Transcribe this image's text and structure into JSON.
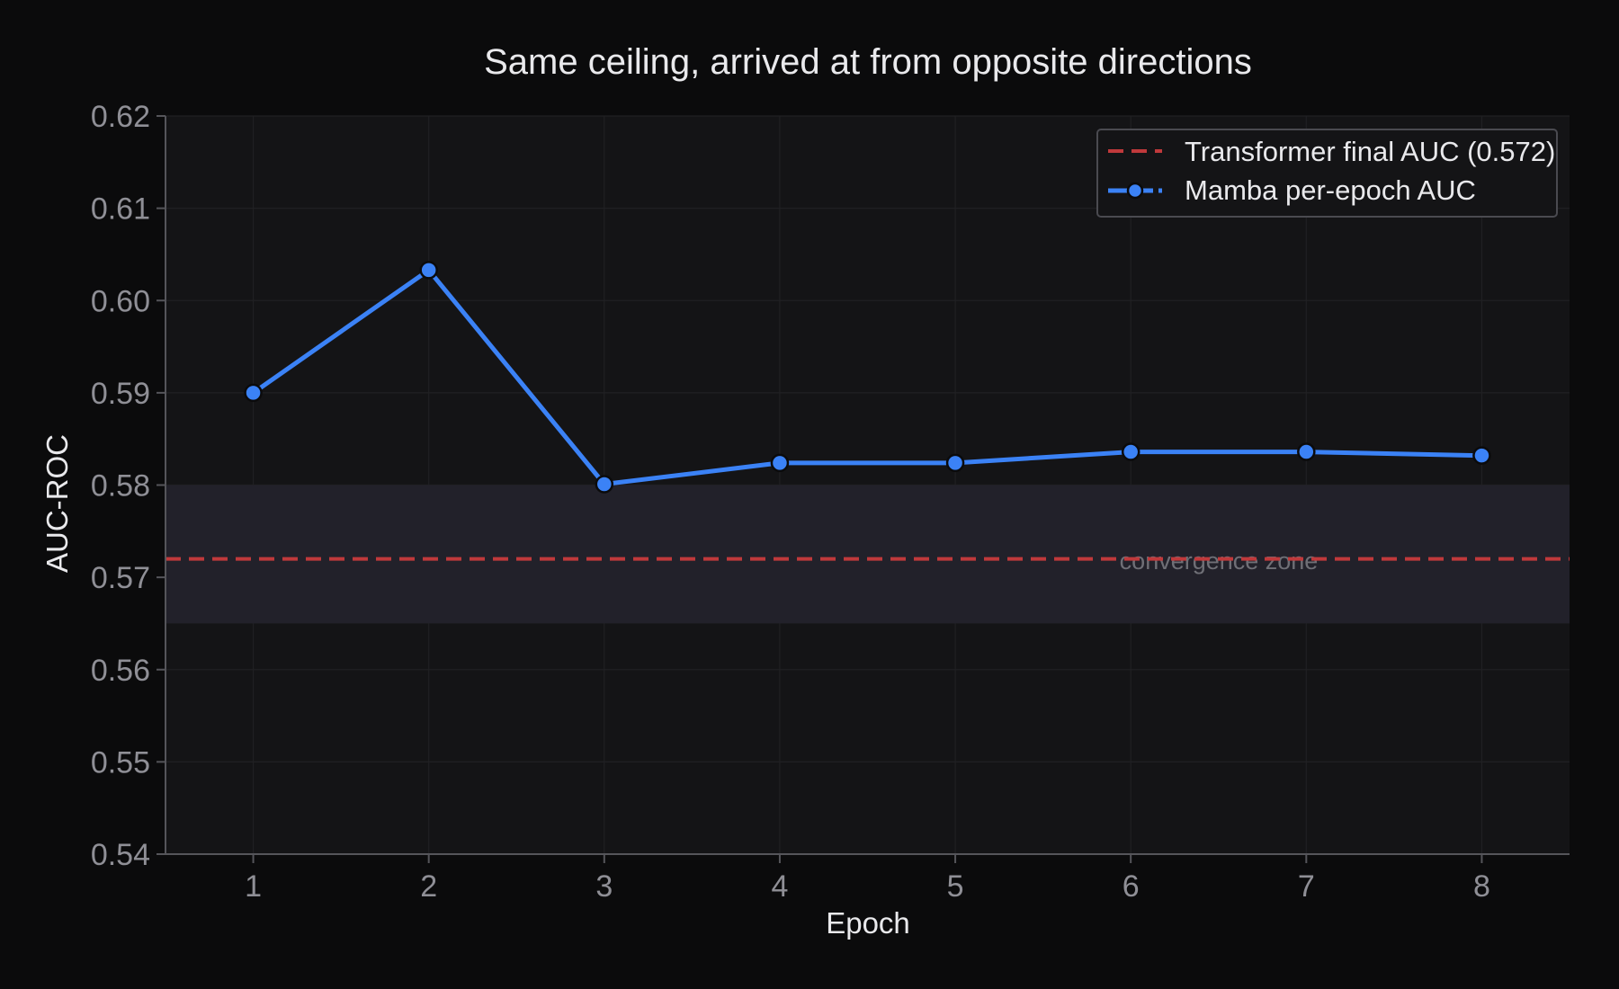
{
  "chart_data": {
    "type": "line",
    "title": "Same ceiling, arrived at from opposite directions",
    "xlabel": "Epoch",
    "ylabel": "AUC-ROC",
    "xlim": [
      0.5,
      8.5
    ],
    "ylim": [
      0.54,
      0.62
    ],
    "x_ticks": [
      1,
      2,
      3,
      4,
      5,
      6,
      7,
      8
    ],
    "y_ticks": [
      0.54,
      0.55,
      0.56,
      0.57,
      0.58,
      0.59,
      0.6,
      0.61,
      0.62
    ],
    "y_tick_labels": [
      "0.54",
      "0.55",
      "0.56",
      "0.57",
      "0.58",
      "0.59",
      "0.60",
      "0.61",
      "0.62"
    ],
    "grid": true,
    "legend_position": "top-right",
    "series": [
      {
        "name": "Mamba per-epoch AUC",
        "x": [
          1,
          2,
          3,
          4,
          5,
          6,
          7,
          8
        ],
        "values": [
          0.59,
          0.6033,
          0.5801,
          0.5824,
          0.5824,
          0.5836,
          0.5836,
          0.5832
        ],
        "color": "#3b82f6",
        "style": "solid",
        "marker": "circle"
      }
    ],
    "reference_lines": [
      {
        "name": "Transformer final AUC (0.572)",
        "y": 0.572,
        "color": "#c0393b",
        "style": "dashed"
      }
    ],
    "bands": [
      {
        "label": "convergence zone",
        "y_range": [
          0.565,
          0.58
        ],
        "color": "#22212a"
      }
    ],
    "colors": {
      "background": "#0b0b0c",
      "plot_background": "#141416",
      "grid": "#202023",
      "axis": "#55555a"
    }
  }
}
